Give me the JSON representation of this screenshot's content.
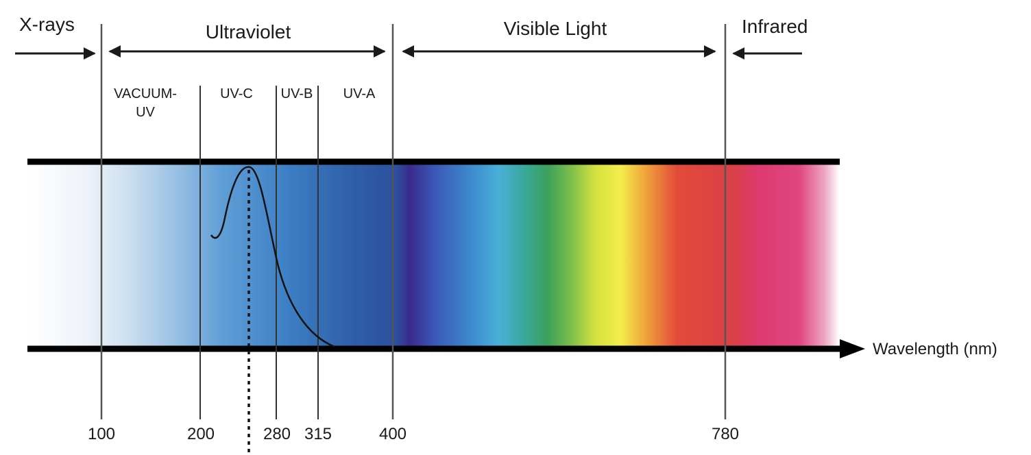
{
  "regions": {
    "xrays": "X-rays",
    "ultraviolet": "Ultraviolet",
    "visible": "Visible Light",
    "infrared": "Infrared"
  },
  "subbands": {
    "vacuum_uv_line1": "VACUUM-",
    "vacuum_uv_line2": "UV",
    "uvc": "UV-C",
    "uvb": "UV-B",
    "uva": "UV-A"
  },
  "axis": {
    "label": "Wavelength (nm)",
    "ticks": [
      "100",
      "200",
      "280",
      "315",
      "400",
      "780"
    ]
  },
  "colors": {
    "text": "#1a1a1a",
    "divider": "#555555",
    "band_edge": "#000000"
  }
}
